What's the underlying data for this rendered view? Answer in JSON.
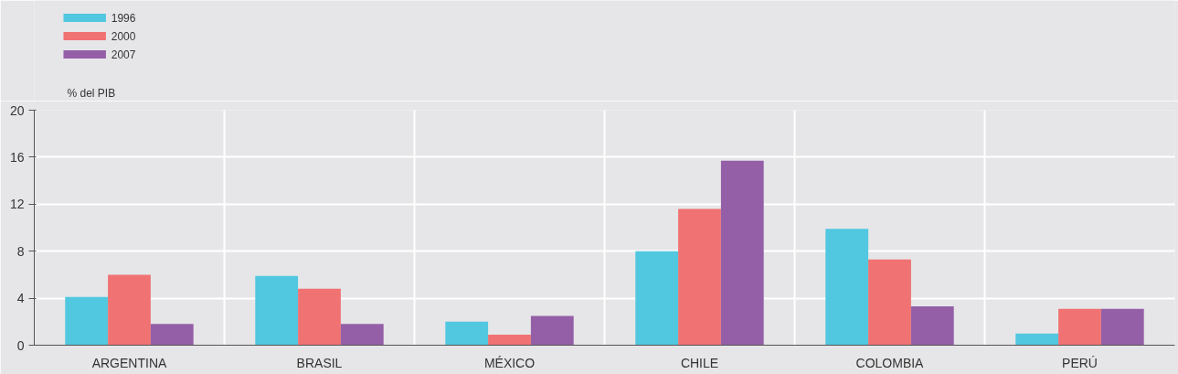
{
  "chart_data": {
    "type": "bar",
    "ylabel": "% del PIB",
    "categories": [
      "ARGENTINA",
      "BRASIL",
      "MÉXICO",
      "CHILE",
      "COLOMBIA",
      "PERÚ"
    ],
    "series": [
      {
        "name": "1996",
        "color": "#52c7e0",
        "values": [
          4.1,
          5.9,
          2.0,
          8.0,
          9.9,
          1.0
        ]
      },
      {
        "name": "2000",
        "color": "#f07272",
        "values": [
          6.0,
          4.8,
          0.9,
          11.6,
          7.3,
          3.1
        ]
      },
      {
        "name": "2007",
        "color": "#955fa8",
        "values": [
          1.8,
          1.8,
          2.5,
          15.7,
          3.3,
          3.1
        ]
      }
    ],
    "ylim": [
      0,
      20
    ],
    "yticks": [
      0,
      4,
      8,
      12,
      16,
      20
    ],
    "grid": true,
    "legend": "top left"
  }
}
